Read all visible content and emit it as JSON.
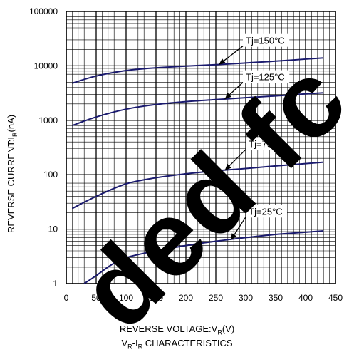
{
  "chart_data": {
    "type": "line",
    "xlabel_main": "REVERSE VOLTAGE:V",
    "xlabel_sub": "R",
    "xlabel_unit": "(V)",
    "caption_a": "V",
    "caption_a_sub": "R",
    "caption_mid": "-I",
    "caption_b_sub": "R",
    "caption_tail": " CHARACTERISTICS",
    "ylabel_main": "REVERSE CURRENT:I",
    "ylabel_sub": "R",
    "ylabel_unit": "(nA)",
    "xlim": [
      0,
      450
    ],
    "ylim": [
      1,
      100000
    ],
    "y_scale": "log",
    "grid": true,
    "x_ticks": [
      "0",
      "50",
      "100",
      "150",
      "200",
      "250",
      "300",
      "350",
      "400",
      "450"
    ],
    "y_ticks": [
      "1",
      "10",
      "100",
      "1000",
      "10000",
      "100000"
    ],
    "line_color": "#1a1a6e",
    "series": [
      {
        "name": "Tj=150°C",
        "x": [
          10,
          50,
          100,
          150,
          200,
          250,
          300,
          350,
          400,
          430
        ],
        "y": [
          4800,
          6500,
          8200,
          9200,
          9900,
          10500,
          11300,
          12200,
          13300,
          14000
        ]
      },
      {
        "name": "Tj=125°C",
        "x": [
          10,
          50,
          100,
          150,
          200,
          250,
          300,
          350,
          400,
          430
        ],
        "y": [
          800,
          1150,
          1600,
          1950,
          2200,
          2400,
          2600,
          2800,
          3050,
          3200
        ]
      },
      {
        "name": "Tj=75°C",
        "x": [
          10,
          50,
          100,
          150,
          200,
          250,
          300,
          350,
          400,
          430
        ],
        "y": [
          24,
          40,
          68,
          88,
          104,
          118,
          130,
          145,
          160,
          170
        ]
      },
      {
        "name": "Tj=25°C",
        "x": [
          30,
          50,
          75,
          100,
          150,
          200,
          250,
          300,
          350,
          400,
          430
        ],
        "y": [
          1.0,
          1.4,
          2.2,
          3.0,
          4.0,
          5.0,
          6.0,
          7.0,
          8.0,
          8.8,
          9.3
        ]
      }
    ],
    "annotations": [
      {
        "series": 0,
        "text": "Tj=150°C",
        "label_at": [
          300,
          26000
        ],
        "arrow_to": [
          255,
          10500
        ]
      },
      {
        "series": 1,
        "text": "Tj=125°C",
        "label_at": [
          300,
          5600
        ],
        "arrow_to": [
          265,
          2450
        ]
      },
      {
        "series": 2,
        "text": "Tj=75°C",
        "label_at": [
          305,
          330
        ],
        "arrow_to": [
          265,
          120
        ]
      },
      {
        "series": 3,
        "text": "Tj=25°C",
        "label_at": [
          305,
          19
        ],
        "arrow_to": [
          275,
          6.3
        ]
      }
    ]
  },
  "watermark": {
    "text": "ded fc",
    "color": "#000000"
  }
}
